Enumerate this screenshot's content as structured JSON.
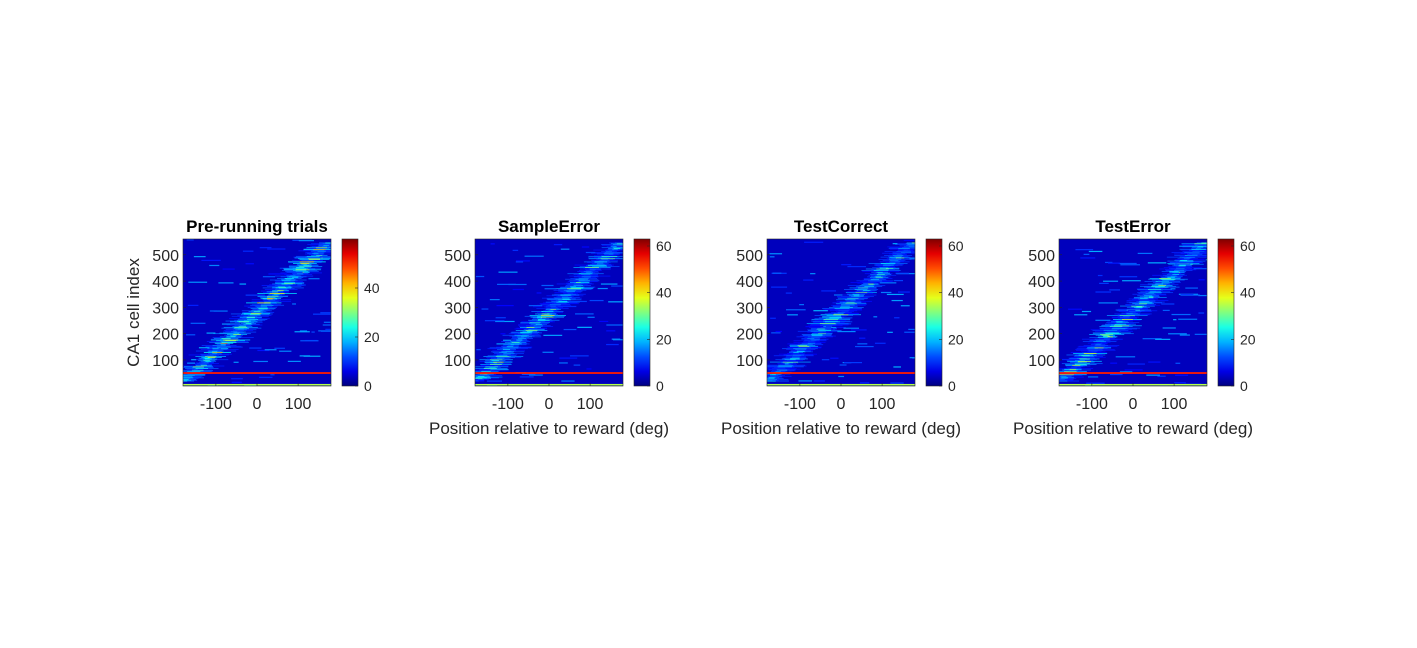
{
  "chart_data": [
    {
      "type": "heatmap",
      "title": "Pre-running trials",
      "xlabel": "",
      "ylabel": "CA1 cell index",
      "xlim": [
        -180,
        180
      ],
      "ylim": [
        1,
        560
      ],
      "xticks": [
        -100,
        0,
        100
      ],
      "yticks": [
        100,
        200,
        300,
        400,
        500
      ],
      "colorbar": {
        "colormap": "jet",
        "range": [
          0,
          60
        ],
        "ticks": [
          0,
          20,
          40
        ]
      },
      "n_cells": 560,
      "diagonal": {
        "start_cell": 20,
        "end_cell": 545,
        "start_pos": -175,
        "end_pos": 175,
        "peak": 45
      }
    },
    {
      "type": "heatmap",
      "title": "SampleError",
      "xlabel": "Position relative to reward (deg)",
      "ylabel": "",
      "xlim": [
        -180,
        180
      ],
      "ylim": [
        1,
        560
      ],
      "xticks": [
        -100,
        0,
        100
      ],
      "yticks": [
        100,
        200,
        300,
        400,
        500
      ],
      "colorbar": {
        "colormap": "jet",
        "range": [
          0,
          63
        ],
        "ticks": [
          0,
          20,
          40,
          60
        ]
      },
      "n_cells": 560,
      "diagonal": {
        "start_cell": 20,
        "end_cell": 545,
        "start_pos": -175,
        "end_pos": 175,
        "peak": 40
      }
    },
    {
      "type": "heatmap",
      "title": "TestCorrect",
      "xlabel": "Position relative to reward (deg)",
      "ylabel": "",
      "xlim": [
        -180,
        180
      ],
      "ylim": [
        1,
        560
      ],
      "xticks": [
        -100,
        0,
        100
      ],
      "yticks": [
        100,
        200,
        300,
        400,
        500
      ],
      "colorbar": {
        "colormap": "jet",
        "range": [
          0,
          63
        ],
        "ticks": [
          0,
          20,
          40,
          60
        ]
      },
      "n_cells": 560,
      "diagonal": {
        "start_cell": 20,
        "end_cell": 545,
        "start_pos": -175,
        "end_pos": 175,
        "peak": 38
      }
    },
    {
      "type": "heatmap",
      "title": "TestError",
      "xlabel": "Position relative to reward (deg)",
      "ylabel": "",
      "xlim": [
        -180,
        180
      ],
      "ylim": [
        1,
        560
      ],
      "xticks": [
        -100,
        0,
        100
      ],
      "yticks": [
        100,
        200,
        300,
        400,
        500
      ],
      "colorbar": {
        "colormap": "jet",
        "range": [
          0,
          63
        ],
        "ticks": [
          0,
          20,
          40,
          60
        ]
      },
      "n_cells": 560,
      "diagonal": {
        "start_cell": 20,
        "end_cell": 545,
        "start_pos": -175,
        "end_pos": 175,
        "peak": 40
      }
    }
  ]
}
